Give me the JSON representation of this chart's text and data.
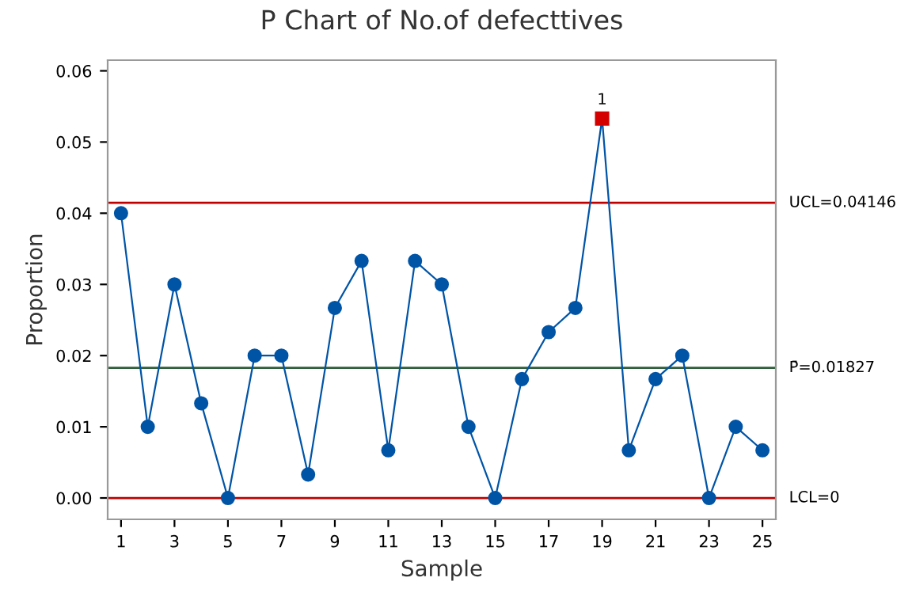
{
  "chart_data": {
    "type": "line",
    "title": "P Chart of No.of defecttives",
    "xlabel": "Sample",
    "ylabel": "Proportion",
    "x": [
      1,
      2,
      3,
      4,
      5,
      6,
      7,
      8,
      9,
      10,
      11,
      12,
      13,
      14,
      15,
      16,
      17,
      18,
      19,
      20,
      21,
      22,
      23,
      24,
      25
    ],
    "series": [
      {
        "color": "#0054a6",
        "colors": [
          "#0054a6",
          "#0054a6",
          "#0054a6",
          "#0054a6",
          "#0054a6",
          "#0054a6",
          "#0054a6",
          "#0054a6",
          "#0054a6",
          "#0054a6",
          "#0054a6",
          "#0054a6",
          "#0054a6",
          "#0054a6",
          "#0054a6",
          "#0054a6",
          "#0054a6",
          "#0054a6",
          "#d40000",
          "#0054a6",
          "#0054a6",
          "#0054a6",
          "#0054a6",
          "#0054a6",
          "#0054a6"
        ],
        "values": [
          0.04,
          0.01,
          0.03,
          0.0133,
          0,
          0.02,
          0.02,
          0.0033,
          0.0267,
          0.0333,
          0.0067,
          0.0333,
          0.03,
          0.01,
          0,
          0.0167,
          0.0233,
          0.0267,
          0.0533,
          0.0067,
          0.0167,
          0.02,
          0,
          0.01,
          0.0067
        ]
      }
    ],
    "xlim": [
      0.5,
      25.5
    ],
    "xticks": [
      1,
      3,
      5,
      7,
      9,
      11,
      13,
      15,
      17,
      19,
      21,
      23,
      25
    ],
    "ylim": [
      -0.003,
      0.0615
    ],
    "yticks": [
      {
        "value": 0,
        "label": "0.00"
      },
      {
        "value": 0.01,
        "label": "0.01"
      },
      {
        "value": 0.02,
        "label": "0.02"
      },
      {
        "value": 0.03,
        "label": "0.03"
      },
      {
        "value": 0.04,
        "label": "0.04"
      },
      {
        "value": 0.05,
        "label": "0.05"
      },
      {
        "value": 0.06,
        "label": "0.06"
      }
    ],
    "ref_lines": [
      {
        "axis": "y",
        "value": 0.04146,
        "label": "UCL=0.04146",
        "color": "#c00000"
      },
      {
        "axis": "y",
        "value": 0.01827,
        "label": "P̄=0.01827",
        "color": "#2e5e3a"
      },
      {
        "axis": "y",
        "value": 0,
        "label": "LCL=0",
        "color": "#c00000"
      }
    ],
    "annotations": [
      {
        "text": "1",
        "x": 19,
        "y": 0.0533
      }
    ],
    "marker": "circle",
    "grid": false
  }
}
